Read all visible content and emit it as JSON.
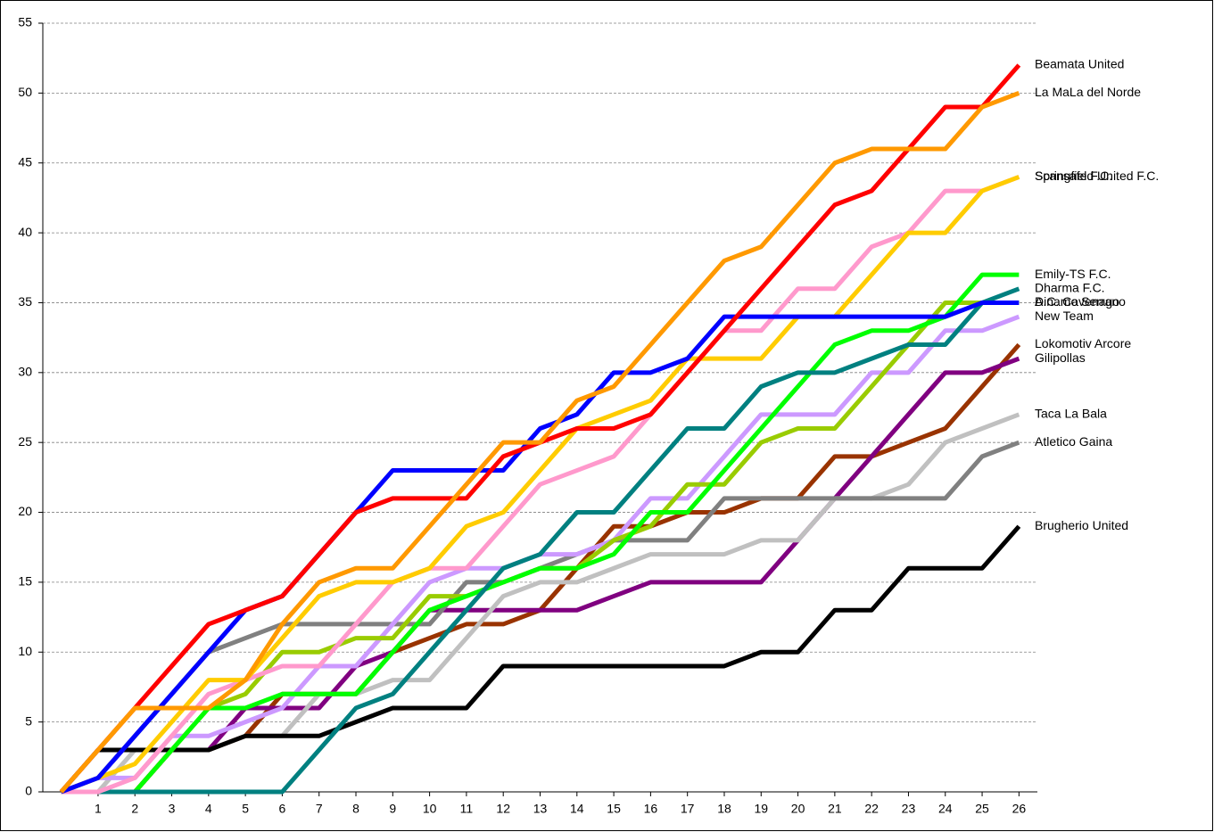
{
  "chart_data": {
    "type": "line",
    "x": [
      0,
      1,
      2,
      3,
      4,
      5,
      6,
      7,
      8,
      9,
      10,
      11,
      12,
      13,
      14,
      15,
      16,
      17,
      18,
      19,
      20,
      21,
      22,
      23,
      24,
      25,
      26
    ],
    "xlim": [
      -0.5,
      26.5
    ],
    "xticks": [
      1,
      2,
      3,
      4,
      5,
      6,
      7,
      8,
      9,
      10,
      11,
      12,
      13,
      14,
      15,
      16,
      17,
      18,
      19,
      20,
      21,
      22,
      23,
      24,
      25,
      26
    ],
    "ylim": [
      0,
      55
    ],
    "yticks": [
      0,
      5,
      10,
      15,
      20,
      25,
      30,
      35,
      40,
      45,
      50,
      55
    ],
    "grid": true,
    "series": [
      {
        "name": "Lokomotiv Arcore",
        "color": "#993300",
        "values": [
          0,
          0,
          0,
          3,
          3,
          4,
          7,
          7,
          7,
          10,
          11,
          12,
          12,
          13,
          16,
          19,
          19,
          20,
          20,
          21,
          21,
          24,
          24,
          25,
          26,
          29,
          32
        ]
      },
      {
        "name": "Gilipollas",
        "color": "#800080",
        "values": [
          0,
          0,
          0,
          3,
          3,
          6,
          6,
          6,
          9,
          10,
          13,
          13,
          13,
          13,
          13,
          14,
          15,
          15,
          15,
          15,
          18,
          21,
          24,
          27,
          30,
          30,
          31
        ]
      },
      {
        "name": "Taca La Bala",
        "color": "#c0c0c0",
        "values": [
          0,
          0,
          3,
          3,
          3,
          4,
          4,
          7,
          7,
          8,
          8,
          11,
          14,
          15,
          15,
          16,
          17,
          17,
          17,
          18,
          18,
          21,
          21,
          22,
          25,
          26,
          27
        ]
      },
      {
        "name": "Atletico Gaina",
        "color": "#808080",
        "values": [
          0,
          1,
          4,
          7,
          10,
          11,
          12,
          12,
          12,
          12,
          12,
          15,
          15,
          16,
          17,
          18,
          18,
          18,
          21,
          21,
          21,
          21,
          21,
          21,
          21,
          24,
          25
        ]
      },
      {
        "name": "Brugherio United",
        "color": "#000000",
        "values": [
          0,
          3,
          3,
          3,
          3,
          4,
          4,
          4,
          5,
          6,
          6,
          6,
          9,
          9,
          9,
          9,
          9,
          9,
          9,
          10,
          10,
          13,
          13,
          16,
          16,
          16,
          19
        ]
      },
      {
        "name": "New Team",
        "color": "#cc99ff",
        "values": [
          0,
          1,
          1,
          4,
          4,
          5,
          6,
          9,
          9,
          12,
          15,
          16,
          16,
          17,
          17,
          18,
          21,
          21,
          24,
          27,
          27,
          27,
          30,
          30,
          33,
          33,
          34
        ]
      },
      {
        "name": "A.C. Cavenago",
        "color": "#99cc00",
        "values": [
          0,
          0,
          0,
          3,
          6,
          7,
          10,
          10,
          11,
          11,
          14,
          14,
          15,
          16,
          16,
          18,
          19,
          22,
          22,
          25,
          26,
          26,
          29,
          32,
          35,
          35,
          35
        ]
      },
      {
        "name": "Emily-TS F.C.",
        "color": "#00ff00",
        "values": [
          0,
          0,
          0,
          3,
          6,
          6,
          7,
          7,
          7,
          10,
          13,
          14,
          15,
          16,
          16,
          17,
          20,
          20,
          23,
          26,
          29,
          32,
          33,
          33,
          34,
          37,
          37
        ]
      },
      {
        "name": "Dharma F.C.",
        "color": "#008080",
        "values": [
          0,
          0,
          0,
          0,
          0,
          0,
          0,
          3,
          6,
          7,
          10,
          13,
          16,
          17,
          20,
          20,
          23,
          26,
          26,
          29,
          30,
          30,
          31,
          32,
          32,
          35,
          36
        ]
      },
      {
        "name": "Scansafe F.C.",
        "color": "#ff99cc",
        "values": [
          0,
          0,
          1,
          4,
          7,
          8,
          9,
          9,
          12,
          15,
          16,
          16,
          19,
          22,
          23,
          24,
          27,
          30,
          33,
          33,
          36,
          36,
          39,
          40,
          43,
          43,
          44
        ]
      },
      {
        "name": "Springfield United F.C.",
        "color": "#ffcc00",
        "values": [
          0,
          1,
          2,
          5,
          8,
          8,
          11,
          14,
          15,
          15,
          16,
          19,
          20,
          23,
          26,
          27,
          28,
          31,
          31,
          31,
          34,
          34,
          37,
          40,
          40,
          43,
          44
        ]
      },
      {
        "name": "Dinamo Serrano",
        "color": "#0000ff",
        "values": [
          0,
          1,
          4,
          7,
          10,
          13,
          14,
          17,
          20,
          23,
          23,
          23,
          23,
          26,
          27,
          30,
          30,
          31,
          34,
          34,
          34,
          34,
          34,
          34,
          34,
          35,
          35
        ]
      },
      {
        "name": "Beamata United",
        "color": "#ff0000",
        "values": [
          0,
          3,
          6,
          9,
          12,
          13,
          14,
          17,
          20,
          21,
          21,
          21,
          24,
          25,
          26,
          26,
          27,
          30,
          33,
          36,
          39,
          42,
          43,
          46,
          49,
          49,
          52
        ]
      },
      {
        "name": "La MaLa del Norde",
        "color": "#ff9900",
        "values": [
          0,
          3,
          6,
          6,
          6,
          8,
          12,
          15,
          16,
          16,
          19,
          22,
          25,
          25,
          28,
          29,
          32,
          35,
          38,
          39,
          42,
          45,
          46,
          46,
          46,
          49,
          50
        ]
      }
    ]
  }
}
